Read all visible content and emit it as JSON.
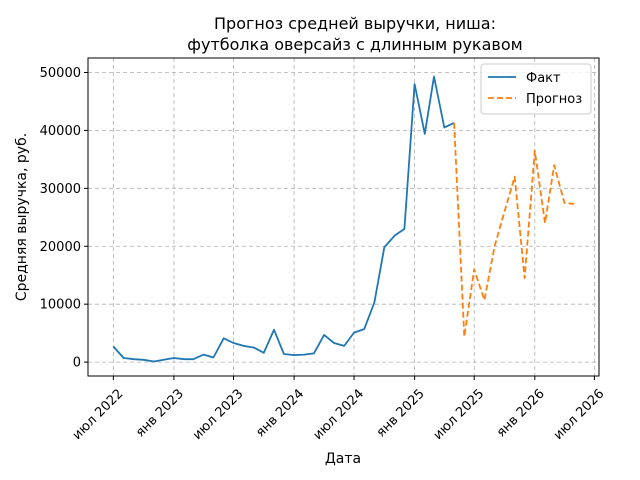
{
  "chart_data": {
    "type": "line",
    "title_line1": "Прогноз средней выручки, ниша:",
    "title_line2": "футболка оверсайз с длинным рукавом",
    "xlabel": "Дата",
    "ylabel": "Средняя выручка, руб.",
    "x_ticks": [
      {
        "date": "2022-07-01",
        "label": "июл 2022"
      },
      {
        "date": "2023-01-01",
        "label": "янв 2023"
      },
      {
        "date": "2023-07-01",
        "label": "июл 2023"
      },
      {
        "date": "2024-01-01",
        "label": "янв 2024"
      },
      {
        "date": "2024-07-01",
        "label": "июл 2024"
      },
      {
        "date": "2025-01-01",
        "label": "янв 2025"
      },
      {
        "date": "2025-07-01",
        "label": "июл 2025"
      },
      {
        "date": "2026-01-01",
        "label": "янв 2026"
      },
      {
        "date": "2026-07-01",
        "label": "июл 2026"
      }
    ],
    "y_ticks": [
      0,
      10000,
      20000,
      30000,
      40000,
      50000
    ],
    "xlim": [
      "2022-04-15",
      "2026-07-15"
    ],
    "ylim": [
      -2400,
      52500
    ],
    "grid": true,
    "legend_position": "top-right",
    "series": [
      {
        "name": "Факт",
        "color": "#1f77b4",
        "style": "solid",
        "x": [
          "2022-07-01",
          "2022-08-01",
          "2022-09-01",
          "2022-10-01",
          "2022-11-01",
          "2022-12-01",
          "2023-01-01",
          "2023-02-01",
          "2023-03-01",
          "2023-04-01",
          "2023-05-01",
          "2023-06-01",
          "2023-07-01",
          "2023-08-01",
          "2023-09-01",
          "2023-10-01",
          "2023-11-01",
          "2023-12-01",
          "2024-01-01",
          "2024-02-01",
          "2024-03-01",
          "2024-04-01",
          "2024-05-01",
          "2024-06-01",
          "2024-07-01",
          "2024-08-01",
          "2024-09-01",
          "2024-10-01",
          "2024-11-01",
          "2024-12-01",
          "2025-01-01",
          "2025-02-01",
          "2025-03-01",
          "2025-04-01",
          "2025-05-01"
        ],
        "y": [
          2700,
          700,
          500,
          400,
          100,
          400,
          700,
          500,
          500,
          1300,
          800,
          4100,
          3300,
          2800,
          2500,
          1600,
          5600,
          1400,
          1200,
          1300,
          1500,
          4700,
          3300,
          2800,
          5100,
          5700,
          10300,
          19800,
          21800,
          23000,
          48000,
          39400,
          49300,
          40500,
          41300
        ]
      },
      {
        "name": "Прогноз",
        "color": "#ff7f0e",
        "style": "dashed",
        "x": [
          "2025-05-01",
          "2025-06-01",
          "2025-07-01",
          "2025-08-01",
          "2025-09-01",
          "2025-10-01",
          "2025-11-01",
          "2025-12-01",
          "2026-01-01",
          "2026-02-01",
          "2026-03-01",
          "2026-04-01",
          "2026-05-01"
        ],
        "y": [
          41300,
          4400,
          16000,
          10700,
          20000,
          26000,
          32000,
          14500,
          36500,
          24000,
          34000,
          27500,
          27300
        ]
      }
    ]
  }
}
